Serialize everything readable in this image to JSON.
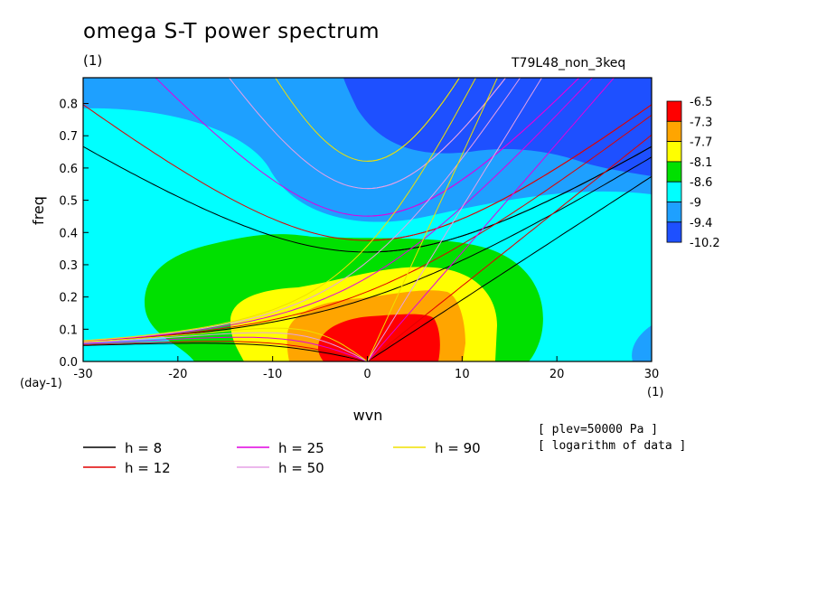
{
  "header": {
    "title": "omega S-T power spectrum",
    "subtitle": "(1)",
    "run_id": "T79L48_non_3keq"
  },
  "notes": [
    "[ plev=50000 Pa ]",
    "[ logarithm of data ]"
  ],
  "chart_data": {
    "type": "heatmap",
    "xlabel": "wvn",
    "ylabel": "freq",
    "x_unit": "(1)",
    "y_unit": "(day-1)",
    "xlim": [
      -30,
      30
    ],
    "ylim": [
      0,
      0.88
    ],
    "xticks": [
      "-30",
      "-20",
      "-10",
      "0",
      "10",
      "20",
      "30"
    ],
    "yticks": [
      "0.0",
      "0.1",
      "0.2",
      "0.3",
      "0.4",
      "0.5",
      "0.6",
      "0.7",
      "0.8"
    ],
    "colorbar": {
      "labels": [
        "-6.5",
        "-7.3",
        "-7.7",
        "-8.1",
        "-8.6",
        "-9",
        "-9.4",
        "-10.2"
      ],
      "colors": [
        "#ff0000",
        "#ffa500",
        "#ffff00",
        "#00e000",
        "#00ffff",
        "#1ea0ff",
        "#1e50ff"
      ]
    },
    "dispersion_legend": [
      {
        "label": "h =  8",
        "color": "#000000",
        "h": 8
      },
      {
        "label": "h = 12",
        "color": "#e00000",
        "h": 12
      },
      {
        "label": "h = 25",
        "color": "#e000e0",
        "h": 25
      },
      {
        "label": "h = 50",
        "color": "#e6a0e6",
        "h": 50
      },
      {
        "label": "h = 90",
        "color": "#f0e000",
        "h": 90
      }
    ]
  }
}
